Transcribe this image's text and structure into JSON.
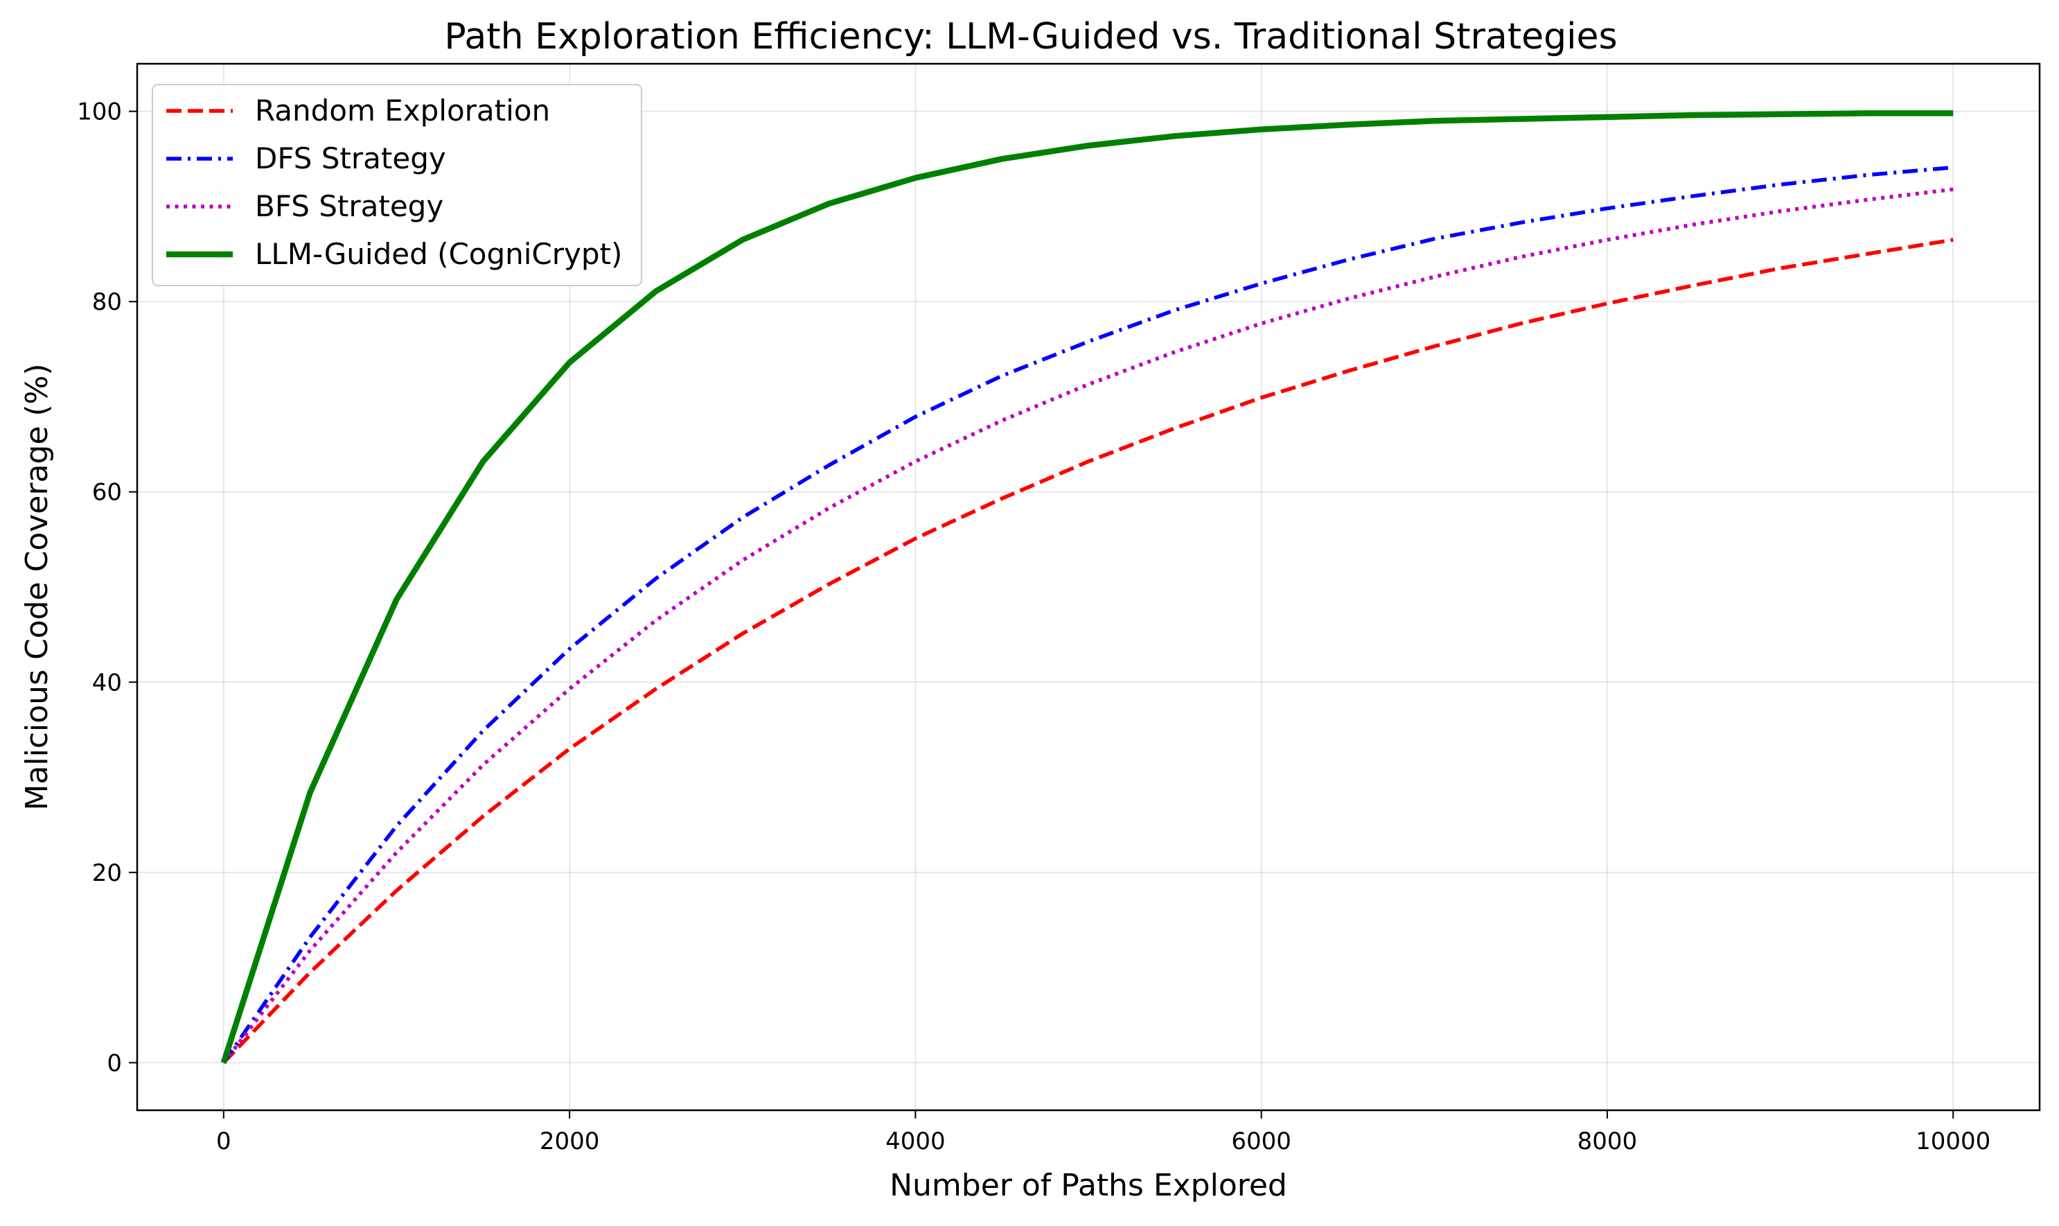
{
  "chart_data": {
    "type": "line",
    "title": "Path Exploration Efficiency: LLM-Guided vs. Traditional Strategies",
    "xlabel": "Number of Paths Explored",
    "ylabel": "Malicious Code Coverage (%)",
    "xlim": [
      -500,
      10500
    ],
    "ylim": [
      -5,
      105
    ],
    "xticks": [
      0,
      2000,
      4000,
      6000,
      8000,
      10000
    ],
    "yticks": [
      0,
      20,
      40,
      60,
      80,
      100
    ],
    "xtick_labels": [
      "0",
      "2000",
      "4000",
      "6000",
      "8000",
      "10000"
    ],
    "ytick_labels": [
      "0",
      "20",
      "40",
      "60",
      "80",
      "100"
    ],
    "grid": true,
    "legend_position": "top-left",
    "x": [
      0,
      500,
      1000,
      1500,
      2000,
      2500,
      3000,
      3500,
      4000,
      4500,
      5000,
      5500,
      6000,
      6500,
      7000,
      7500,
      8000,
      8500,
      9000,
      9500,
      10000
    ],
    "series": [
      {
        "name": "Random Exploration",
        "color": "#ff0000",
        "style": "dashed",
        "values": [
          0,
          9.5,
          18.1,
          25.9,
          33.0,
          39.3,
          45.1,
          50.3,
          55.1,
          59.3,
          63.2,
          66.7,
          69.9,
          72.7,
          75.3,
          77.7,
          79.8,
          81.7,
          83.5,
          85.0,
          86.5
        ]
      },
      {
        "name": "DFS Strategy",
        "color": "#0000ff",
        "style": "dashdot",
        "values": [
          0,
          13.2,
          24.9,
          34.9,
          43.5,
          50.9,
          57.3,
          62.8,
          67.9,
          72.2,
          75.8,
          79.1,
          81.9,
          84.4,
          86.6,
          88.3,
          89.8,
          91.1,
          92.3,
          93.3,
          94.1
        ]
      },
      {
        "name": "BFS Strategy",
        "color": "#bf00bf",
        "style": "dotted",
        "values": [
          0,
          11.8,
          22.1,
          31.3,
          39.3,
          46.5,
          52.8,
          58.3,
          63.2,
          67.5,
          71.3,
          74.7,
          77.7,
          80.3,
          82.6,
          84.7,
          86.5,
          88.1,
          89.5,
          90.7,
          91.8
        ]
      },
      {
        "name": "LLM-Guided (CogniCrypt)",
        "color": "#008000",
        "style": "solid",
        "values": [
          0,
          28.4,
          48.7,
          63.2,
          73.6,
          81.1,
          86.5,
          90.3,
          93.0,
          95.0,
          96.4,
          97.4,
          98.1,
          98.6,
          99.0,
          99.2,
          99.4,
          99.6,
          99.7,
          99.8,
          99.8
        ]
      }
    ]
  }
}
